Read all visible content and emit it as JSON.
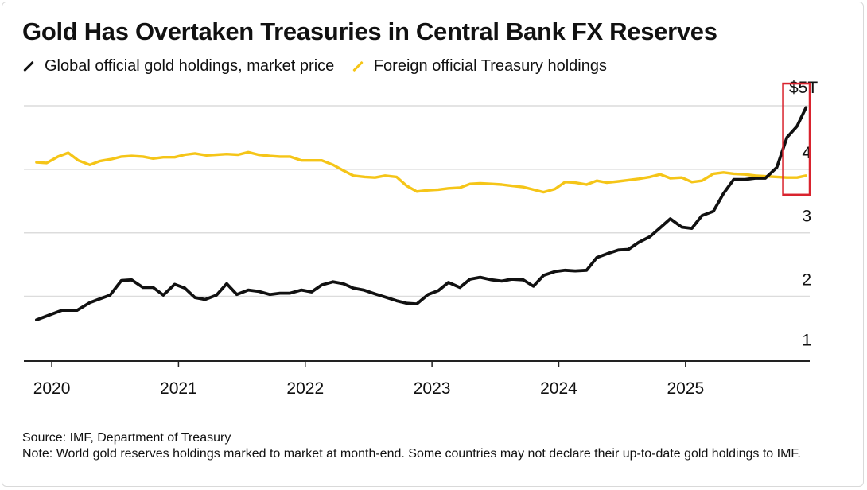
{
  "title": "Gold Has Overtaken Treasuries in Central Bank FX Reserves",
  "legend": [
    {
      "label": "Global official gold holdings, market price",
      "color": "#111111"
    },
    {
      "label": "Foreign official Treasury holdings",
      "color": "#f5c518"
    }
  ],
  "y_unit_label": "$5T",
  "source": "Source: IMF, Department of Treasury",
  "note": "Note: World gold reserves holdings marked to market at month-end. Some countries may not declare their up-to-date gold holdings to IMF.",
  "colors": {
    "gold_line": "#111111",
    "treasury_line": "#f5c518",
    "highlight": "#d9232e",
    "grid": "#dcdcdc",
    "axis": "#222222"
  },
  "chart_data": {
    "type": "line",
    "title": "Gold Has Overtaken Treasuries in Central Bank FX Reserves",
    "xlabel": "",
    "ylabel": "",
    "xlim": [
      2019.78,
      2025.98
    ],
    "ylim": [
      0.98,
      5.0
    ],
    "x_ticks": [
      2020,
      2021,
      2022,
      2023,
      2024,
      2025
    ],
    "x_tick_labels": [
      "2020",
      "2021",
      "2022",
      "2023",
      "2024",
      "2025"
    ],
    "y_ticks": [
      1,
      2,
      3,
      4,
      5
    ],
    "y_tick_labels": [
      "1",
      "2",
      "3",
      "4",
      "$5T"
    ],
    "highlight_range": {
      "x": [
        2025.77,
        2025.98
      ],
      "y": [
        3.6,
        5.35
      ]
    },
    "series": [
      {
        "name": "Global official gold holdings, market price",
        "color": "#111111",
        "x": [
          2019.88,
          2019.96,
          2020.08,
          2020.2,
          2020.3,
          2020.38,
          2020.46,
          2020.55,
          2020.63,
          2020.72,
          2020.8,
          2020.88,
          2020.97,
          2021.05,
          2021.13,
          2021.21,
          2021.3,
          2021.38,
          2021.46,
          2021.55,
          2021.63,
          2021.72,
          2021.8,
          2021.88,
          2021.97,
          2022.05,
          2022.13,
          2022.22,
          2022.3,
          2022.38,
          2022.46,
          2022.55,
          2022.63,
          2022.72,
          2022.8,
          2022.88,
          2022.97,
          2023.05,
          2023.13,
          2023.22,
          2023.3,
          2023.38,
          2023.47,
          2023.55,
          2023.63,
          2023.72,
          2023.8,
          2023.88,
          2023.97,
          2024.05,
          2024.13,
          2024.22,
          2024.3,
          2024.38,
          2024.47,
          2024.55,
          2024.63,
          2024.72,
          2024.8,
          2024.88,
          2024.97,
          2025.05,
          2025.13,
          2025.22,
          2025.3,
          2025.38,
          2025.47,
          2025.55,
          2025.63,
          2025.72,
          2025.8,
          2025.88,
          2025.95
        ],
        "values": [
          1.63,
          1.69,
          1.78,
          1.78,
          1.9,
          1.96,
          2.02,
          2.25,
          2.26,
          2.14,
          2.14,
          2.02,
          2.19,
          2.13,
          1.98,
          1.95,
          2.02,
          2.2,
          2.03,
          2.1,
          2.08,
          2.03,
          2.05,
          2.05,
          2.1,
          2.07,
          2.18,
          2.23,
          2.2,
          2.13,
          2.1,
          2.04,
          1.99,
          1.93,
          1.89,
          1.88,
          2.03,
          2.09,
          2.22,
          2.14,
          2.27,
          2.3,
          2.26,
          2.24,
          2.27,
          2.26,
          2.16,
          2.33,
          2.39,
          2.41,
          2.4,
          2.41,
          2.61,
          2.67,
          2.73,
          2.74,
          2.85,
          2.94,
          3.08,
          3.22,
          3.09,
          3.07,
          3.27,
          3.34,
          3.62,
          3.84,
          3.84,
          3.86,
          3.86,
          4.03,
          4.5,
          4.68,
          4.97
        ]
      },
      {
        "name": "Foreign official Treasury holdings",
        "color": "#f5c518",
        "x": [
          2019.88,
          2019.96,
          2020.05,
          2020.13,
          2020.21,
          2020.3,
          2020.38,
          2020.47,
          2020.55,
          2020.63,
          2020.72,
          2020.8,
          2020.88,
          2020.97,
          2021.05,
          2021.13,
          2021.22,
          2021.3,
          2021.38,
          2021.47,
          2021.55,
          2021.63,
          2021.72,
          2021.8,
          2021.88,
          2021.97,
          2022.05,
          2022.13,
          2022.22,
          2022.3,
          2022.38,
          2022.47,
          2022.55,
          2022.63,
          2022.72,
          2022.8,
          2022.88,
          2022.97,
          2023.05,
          2023.13,
          2023.22,
          2023.3,
          2023.38,
          2023.47,
          2023.55,
          2023.63,
          2023.72,
          2023.8,
          2023.88,
          2023.97,
          2024.05,
          2024.13,
          2024.22,
          2024.3,
          2024.38,
          2024.47,
          2024.55,
          2024.63,
          2024.72,
          2024.8,
          2024.88,
          2024.97,
          2025.05,
          2025.13,
          2025.22,
          2025.3,
          2025.38,
          2025.47,
          2025.55,
          2025.63,
          2025.72,
          2025.8,
          2025.88,
          2025.95
        ],
        "values": [
          4.11,
          4.1,
          4.2,
          4.26,
          4.14,
          4.07,
          4.13,
          4.16,
          4.2,
          4.21,
          4.2,
          4.17,
          4.19,
          4.19,
          4.23,
          4.25,
          4.22,
          4.23,
          4.24,
          4.23,
          4.27,
          4.23,
          4.21,
          4.2,
          4.2,
          4.14,
          4.14,
          4.14,
          4.07,
          3.98,
          3.9,
          3.88,
          3.87,
          3.9,
          3.88,
          3.74,
          3.65,
          3.67,
          3.68,
          3.7,
          3.71,
          3.77,
          3.78,
          3.77,
          3.76,
          3.74,
          3.72,
          3.68,
          3.64,
          3.69,
          3.8,
          3.79,
          3.76,
          3.82,
          3.79,
          3.81,
          3.83,
          3.85,
          3.88,
          3.92,
          3.86,
          3.87,
          3.8,
          3.82,
          3.93,
          3.95,
          3.93,
          3.92,
          3.9,
          3.89,
          3.88,
          3.87,
          3.87,
          3.9
        ]
      }
    ]
  }
}
